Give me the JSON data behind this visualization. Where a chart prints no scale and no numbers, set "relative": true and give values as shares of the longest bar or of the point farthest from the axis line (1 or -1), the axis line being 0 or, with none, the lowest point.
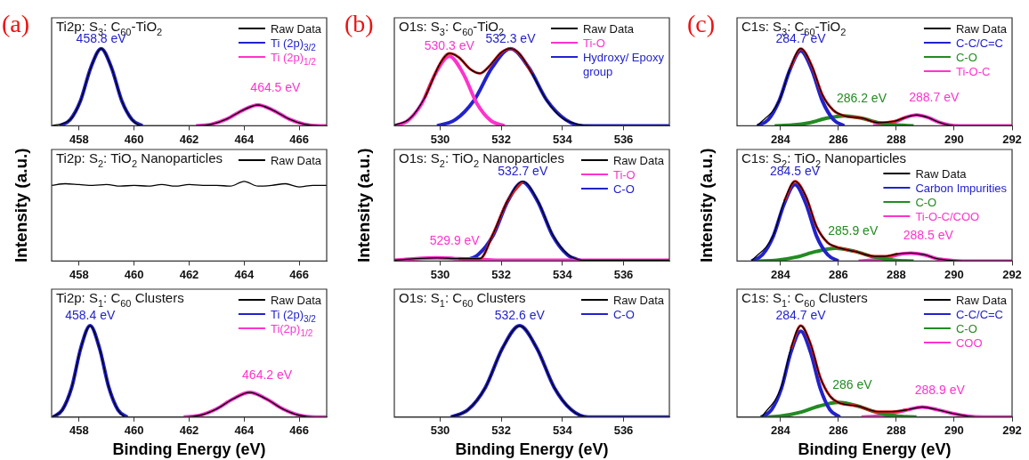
{
  "chart_data": [
    {
      "type": "line",
      "relative": true,
      "title": "Ti2p: S$_{3}$: C$_{60}$-TiO$_{2}$",
      "xlim": [
        457,
        467
      ],
      "xticks": [
        458,
        460,
        462,
        464,
        466
      ],
      "legend": "top right",
      "annotations": [
        "(a)",
        {
          "text": "458.8 eV",
          "x": 458.8,
          "y": 1
        },
        {
          "text": "464.5 eV",
          "x": 464.5,
          "y": 0.27
        }
      ],
      "series": [
        {
          "name": "Raw Data",
          "color": "#000000",
          "x": [
            457,
            457.675,
            458.05,
            458.425,
            458.8,
            459.175,
            459.55,
            459.925,
            460.3,
            462.25,
            462.81,
            463.38,
            463.94,
            464.5,
            465.06,
            465.62,
            466.19,
            466.75,
            467
          ],
          "values": [
            0,
            0.08,
            0.325,
            0.755,
            1,
            0.755,
            0.325,
            0.08,
            0,
            0,
            0.02,
            0.09,
            0.2,
            0.27,
            0.2,
            0.09,
            0.02,
            0,
            0
          ]
        },
        {
          "name": "Ti (2p)$_{3/2}$",
          "color": "#2222cc",
          "x": [
            457.3,
            457.675,
            458.05,
            458.425,
            458.8,
            459.175,
            459.55,
            459.925,
            460.3
          ],
          "values": [
            0,
            0.08,
            0.325,
            0.755,
            1,
            0.755,
            0.325,
            0.08,
            0
          ]
        },
        {
          "name": "Ti (2p)$_{1/2}$",
          "color": "#ff33cc",
          "x": [
            462.25,
            462.81,
            463.38,
            463.94,
            464.5,
            465.06,
            465.62,
            466.19,
            466.75,
            467
          ],
          "values": [
            0,
            0.02,
            0.09,
            0.2,
            0.27,
            0.2,
            0.09,
            0.02,
            0,
            0
          ]
        }
      ]
    },
    {
      "type": "line",
      "relative": true,
      "title": "Ti2p: S$_{2}$: TiO$_{2}$ Nanoparticles",
      "ylabel": "Intensity (a.u.)",
      "xlim": [
        457,
        467
      ],
      "xticks": [
        458,
        460,
        462,
        464,
        466
      ],
      "legend": "top right",
      "series": [
        {
          "name": "Raw Data",
          "color": "#000000",
          "x": [
            457,
            457.5,
            458,
            458.5,
            459,
            459.5,
            460,
            460.5,
            461,
            461.5,
            462,
            462.5,
            463,
            463.5,
            464,
            464.5,
            465,
            465.5,
            466,
            466.5,
            467
          ],
          "values": [
            0.95,
            0.97,
            0.96,
            0.95,
            0.96,
            0.94,
            0.95,
            0.94,
            0.96,
            0.94,
            0.96,
            0.95,
            0.95,
            0.94,
            1,
            0.94,
            0.95,
            0.97,
            0.93,
            0.95,
            0.95
          ]
        }
      ]
    },
    {
      "type": "line",
      "relative": true,
      "title": "Ti2p: S$_{1}$: C$_{60}$ Clusters",
      "xlabel": "Binding Energy (eV)",
      "xlim": [
        457,
        467
      ],
      "xticks": [
        458,
        460,
        462,
        464,
        466
      ],
      "legend": "top right",
      "annotations": [
        {
          "text": "458.4 eV",
          "x": 458.4,
          "y": 1
        },
        {
          "text": "464.2 eV",
          "x": 464.2,
          "y": 0.27
        }
      ],
      "series": [
        {
          "name": "Raw Data",
          "color": "#000000",
          "x": [
            457,
            457.39,
            457.73,
            458.06,
            458.4,
            458.74,
            459.08,
            459.41,
            459.75,
            461.8,
            462.4,
            463,
            463.6,
            464.2,
            464.8,
            465.4,
            466,
            466.6,
            467
          ],
          "values": [
            0,
            0.08,
            0.325,
            0.755,
            1,
            0.755,
            0.325,
            0.08,
            0,
            0,
            0.02,
            0.09,
            0.2,
            0.27,
            0.2,
            0.09,
            0.02,
            0,
            0
          ]
        },
        {
          "name": "Ti (2p)$_{3/2}$",
          "color": "#2222cc",
          "x": [
            457.05,
            457.39,
            457.73,
            458.06,
            458.4,
            458.74,
            459.08,
            459.41,
            459.75
          ],
          "values": [
            0,
            0.08,
            0.325,
            0.755,
            1,
            0.755,
            0.325,
            0.08,
            0
          ]
        },
        {
          "name": "Ti(2p)$_{1/2}$",
          "color": "#ff33cc",
          "x": [
            461.8,
            462.4,
            463,
            463.6,
            464.2,
            464.8,
            465.4,
            466,
            466.6,
            467
          ],
          "values": [
            0,
            0.02,
            0.09,
            0.2,
            0.27,
            0.2,
            0.09,
            0.02,
            0,
            0
          ]
        }
      ]
    },
    {
      "type": "line",
      "relative": true,
      "title": "O1s: S$_{3}$: C$_{60}$-TiO$_{2}$",
      "xlim": [
        528.5,
        537.5
      ],
      "xticks": [
        530,
        532,
        534,
        536
      ],
      "legend": "top right",
      "annotations": [
        "(b)",
        {
          "text": "530.3 eV",
          "x": 530.3,
          "y": 0.9
        },
        {
          "text": "532.3 eV",
          "x": 532.3,
          "y": 1
        }
      ],
      "series": [
        {
          "name": "Raw Data",
          "color": "#000000",
          "x": [
            528.5,
            529,
            529.5,
            530,
            530.3,
            530.6,
            531,
            531.3,
            531.6,
            532,
            532.3,
            532.6,
            533,
            533.5,
            534,
            534.5,
            535,
            537.5
          ],
          "values": [
            0.01,
            0.09,
            0.37,
            0.81,
            0.94,
            0.89,
            0.73,
            0.68,
            0.77,
            0.95,
            1,
            0.93,
            0.68,
            0.32,
            0.1,
            0.02,
            0,
            0
          ]
        },
        {
          "name": "Ti-O",
          "color": "#ff33cc",
          "x": [
            528.5,
            528.95,
            529.4,
            529.85,
            530.3,
            530.75,
            531.2,
            531.65,
            532.1
          ],
          "values": [
            0,
            0.07,
            0.29,
            0.68,
            0.9,
            0.68,
            0.29,
            0.07,
            0
          ]
        },
        {
          "name": "Hydroxy/ Epoxy group",
          "color": "#2222cc",
          "x": [
            529.9,
            530.5,
            531.1,
            531.7,
            532.3,
            532.9,
            533.5,
            534.1,
            534.7,
            537.5
          ],
          "values": [
            0,
            0.08,
            0.325,
            0.755,
            1,
            0.755,
            0.325,
            0.08,
            0,
            0
          ]
        },
        {
          "color": "#e02020",
          "x": [
            529.5,
            530,
            530.3,
            530.6,
            531,
            531.3,
            531.6,
            532,
            532.3,
            532.6,
            533
          ],
          "values": [
            0.37,
            0.81,
            0.94,
            0.89,
            0.73,
            0.68,
            0.77,
            0.95,
            1,
            0.93,
            0.68
          ]
        }
      ]
    },
    {
      "type": "line",
      "relative": true,
      "title": "O1s: S$_{2}$: TiO$_{2}$ Nanoparticles",
      "ylabel": "Intensity (a.u.)",
      "xlim": [
        528.5,
        537.5
      ],
      "xticks": [
        530,
        532,
        534,
        536
      ],
      "legend": "top right",
      "annotations": [
        {
          "text": "532.7 eV",
          "x": 532.7,
          "y": 1
        },
        {
          "text": "529.9 eV",
          "x": 529.9,
          "y": 0.04
        }
      ],
      "series": [
        {
          "name": "Raw Data",
          "color": "#000000",
          "x": [
            528.5,
            529.2,
            529.9,
            530.6,
            531.3,
            531.73,
            532.21,
            532.7,
            533.19,
            533.68,
            534.16,
            534.65,
            537.5
          ],
          "values": [
            0.01,
            0.03,
            0.04,
            0.03,
            0.03,
            0.34,
            0.76,
            1,
            0.76,
            0.33,
            0.09,
            0.01,
            0.01
          ]
        },
        {
          "name": "Ti-O",
          "color": "#ff33cc",
          "x": [
            528.5,
            529.2,
            529.9,
            530.6,
            531.3,
            532,
            537.5
          ],
          "values": [
            0.01,
            0.03,
            0.04,
            0.03,
            0.02,
            0.01,
            0.01
          ]
        },
        {
          "name": "C-O",
          "color": "#2222cc",
          "x": [
            530.75,
            531.24,
            531.73,
            532.21,
            532.7,
            533.19,
            533.68,
            534.16,
            534.65
          ],
          "values": [
            0,
            0.08,
            0.32,
            0.75,
            0.99,
            0.75,
            0.32,
            0.08,
            0
          ]
        },
        {
          "color": "#e02020",
          "x": [
            530.6,
            531.3,
            531.73,
            532.21,
            532.7
          ],
          "values": [
            0.03,
            0.03,
            0.34,
            0.76,
            1
          ]
        }
      ]
    },
    {
      "type": "line",
      "relative": true,
      "title": "O1s: S$_{1}$: C$_{60}$ Clusters",
      "xlabel": "Binding Energy (eV)",
      "xlim": [
        528.5,
        537.5
      ],
      "xticks": [
        530,
        532,
        534,
        536
      ],
      "legend": "top right",
      "annotations": [
        {
          "text": "532.6 eV",
          "x": 532.6,
          "y": 1
        }
      ],
      "series": [
        {
          "name": "Raw Data",
          "color": "#000000",
          "x": [
            530.35,
            530.91,
            531.48,
            532.04,
            532.6,
            533.16,
            533.73,
            534.29,
            534.85,
            537.5
          ],
          "values": [
            0,
            0.08,
            0.325,
            0.755,
            1,
            0.755,
            0.325,
            0.08,
            0,
            0
          ]
        },
        {
          "name": "C-O",
          "color": "#2222cc",
          "x": [
            530.35,
            530.91,
            531.48,
            532.04,
            532.6,
            533.16,
            533.73,
            534.29,
            534.85,
            537.5
          ],
          "values": [
            0,
            0.08,
            0.325,
            0.755,
            1,
            0.755,
            0.325,
            0.08,
            0,
            0
          ]
        }
      ]
    },
    {
      "type": "line",
      "relative": true,
      "title": "C1s: S$_{3}$: C$_{60}$-TiO$_{2}$",
      "xlim": [
        282.5,
        292
      ],
      "xticks": [
        284,
        286,
        288,
        290,
        292
      ],
      "legend": "top right",
      "annotations": [
        "(c)",
        {
          "text": "284.7 eV",
          "x": 284.7,
          "y": 1
        },
        {
          "text": "286.2 eV",
          "x": 286.2,
          "y": 0.13
        },
        {
          "text": "288.7 eV",
          "x": 288.7,
          "y": 0.14
        }
      ],
      "series": [
        {
          "name": "Raw Data",
          "color": "#000000",
          "x": [
            283.2,
            283.95,
            284.33,
            284.7,
            285.08,
            285.45,
            285.83,
            286.2,
            286.8,
            287.4,
            287.95,
            288.33,
            288.7,
            289.08,
            289.45,
            289.83,
            290.2,
            292
          ],
          "values": [
            0,
            0.32,
            0.74,
            1,
            0.78,
            0.4,
            0.2,
            0.13,
            0.1,
            0.04,
            0.06,
            0.11,
            0.14,
            0.11,
            0.05,
            0.01,
            0,
            0
          ]
        },
        {
          "name": "C-C/C=C",
          "color": "#2222cc",
          "x": [
            283.2,
            283.58,
            283.95,
            284.33,
            284.7,
            285.08,
            285.45,
            285.83,
            286.2
          ],
          "values": [
            0,
            0.08,
            0.32,
            0.73,
            0.97,
            0.73,
            0.32,
            0.08,
            0
          ]
        },
        {
          "name": "C-O",
          "color": "#228b22",
          "x": [
            283.8,
            284.4,
            285,
            285.6,
            286.2,
            286.8,
            287.4,
            288,
            288.6
          ],
          "values": [
            0,
            0.01,
            0.04,
            0.1,
            0.13,
            0.1,
            0.04,
            0.01,
            0
          ]
        },
        {
          "name": "Ti-O-C",
          "color": "#ff33cc",
          "x": [
            287.2,
            287.58,
            287.95,
            288.33,
            288.7,
            289.08,
            289.45,
            289.83,
            290.2,
            292
          ],
          "values": [
            0,
            0.01,
            0.05,
            0.11,
            0.14,
            0.11,
            0.05,
            0.01,
            0,
            0
          ]
        },
        {
          "color": "#e02020",
          "x": [
            284.33,
            284.7,
            285.08,
            285.45,
            285.83,
            286.2,
            286.8,
            287.4,
            287.95,
            288.33
          ],
          "values": [
            0.74,
            1,
            0.78,
            0.4,
            0.2,
            0.13,
            0.1,
            0.04,
            0.06,
            0.11
          ]
        }
      ]
    },
    {
      "type": "line",
      "relative": true,
      "title": "C1s: S$_{2}$: TiO$_{2}$ Nanoparticles",
      "ylabel": "Intensity (a.u.)",
      "xlim": [
        282.5,
        292
      ],
      "xticks": [
        284,
        286,
        288,
        290,
        292
      ],
      "legend": "top right",
      "annotations": [
        {
          "text": "284.5 eV",
          "x": 284.5,
          "y": 1
        },
        {
          "text": "285.9 eV",
          "x": 285.9,
          "y": 0.16
        },
        {
          "text": "288.5 eV",
          "x": 288.5,
          "y": 0.1
        }
      ],
      "series": [
        {
          "name": "Raw Data",
          "color": "#000000",
          "x": [
            283,
            283.75,
            284.13,
            284.5,
            284.88,
            285.25,
            285.63,
            285.9,
            286.58,
            287.25,
            287.6,
            288.05,
            288.5,
            288.95,
            289.4,
            289.85,
            290.3,
            292
          ],
          "values": [
            0,
            0.32,
            0.75,
            1,
            0.81,
            0.43,
            0.23,
            0.18,
            0.12,
            0.06,
            0.06,
            0.09,
            0.1,
            0.08,
            0.03,
            0.01,
            0,
            0
          ]
        },
        {
          "name": "Carbon Impurities",
          "color": "#2222cc",
          "x": [
            283,
            283.38,
            283.75,
            284.13,
            284.5,
            284.88,
            285.25,
            285.63,
            286
          ],
          "values": [
            0,
            0.08,
            0.31,
            0.72,
            0.96,
            0.72,
            0.31,
            0.08,
            0
          ]
        },
        {
          "name": "C-O",
          "color": "#228b22",
          "x": [
            283.2,
            283.88,
            284.55,
            285.23,
            285.9,
            286.58,
            287.25,
            287.93,
            288.6
          ],
          "values": [
            0,
            0.01,
            0.05,
            0.12,
            0.16,
            0.12,
            0.05,
            0.01,
            0
          ]
        },
        {
          "name": "Ti-O-C/COO",
          "color": "#ff33cc",
          "x": [
            286.7,
            287.15,
            287.6,
            288.05,
            288.5,
            288.95,
            289.4,
            289.85,
            290.3,
            292
          ],
          "values": [
            0,
            0.01,
            0.03,
            0.08,
            0.1,
            0.08,
            0.03,
            0.01,
            0,
            0
          ]
        },
        {
          "color": "#e02020",
          "x": [
            284.13,
            284.5,
            284.88,
            285.25,
            285.63,
            285.9,
            286.58,
            287.25,
            287.6,
            288.05
          ],
          "values": [
            0.75,
            1,
            0.81,
            0.43,
            0.23,
            0.18,
            0.12,
            0.06,
            0.06,
            0.09
          ]
        }
      ]
    },
    {
      "type": "line",
      "relative": true,
      "title": "C1s: S$_{1}$: C$_{60}$ Clusters",
      "xlabel": "Binding Energy (eV)",
      "xlim": [
        282.5,
        292
      ],
      "xticks": [
        284,
        286,
        288,
        290,
        292
      ],
      "legend": "top right",
      "annotations": [
        {
          "text": "284.7 eV",
          "x": 284.7,
          "y": 1
        },
        {
          "text": "286 eV",
          "x": 286,
          "y": 0.16
        },
        {
          "text": "288.9 eV",
          "x": 288.9,
          "y": 0.11
        }
      ],
      "series": [
        {
          "name": "Raw Data",
          "color": "#000000",
          "x": [
            283.35,
            284.03,
            284.36,
            284.7,
            285.04,
            285.38,
            285.71,
            286,
            286.68,
            287.35,
            287.85,
            288.38,
            288.9,
            289.43,
            289.95,
            290.48,
            291,
            292
          ],
          "values": [
            0,
            0.33,
            0.75,
            1,
            0.8,
            0.43,
            0.23,
            0.16,
            0.12,
            0.06,
            0.06,
            0.08,
            0.11,
            0.08,
            0.04,
            0.01,
            0,
            0
          ]
        },
        {
          "name": "C-C/C=C",
          "color": "#2222cc",
          "x": [
            283.35,
            283.69,
            284.03,
            284.36,
            284.7,
            285.04,
            285.38,
            285.71,
            286.05
          ],
          "values": [
            0,
            0.08,
            0.31,
            0.71,
            0.94,
            0.71,
            0.31,
            0.08,
            0
          ]
        },
        {
          "name": "C-O",
          "color": "#228b22",
          "x": [
            283.3,
            283.98,
            284.65,
            285.33,
            286,
            286.68,
            287.35,
            288.03,
            288.7
          ],
          "values": [
            0,
            0.01,
            0.05,
            0.12,
            0.16,
            0.12,
            0.05,
            0.01,
            0
          ]
        },
        {
          "name": "COO",
          "color": "#ff33cc",
          "x": [
            286.8,
            287.33,
            287.85,
            288.38,
            288.9,
            289.43,
            289.95,
            290.48,
            291,
            292
          ],
          "values": [
            0,
            0.01,
            0.04,
            0.08,
            0.11,
            0.08,
            0.04,
            0.01,
            0,
            0
          ]
        },
        {
          "color": "#e02020",
          "x": [
            284.36,
            284.7,
            285.04,
            285.38,
            285.71,
            286,
            286.68,
            287.35,
            287.85,
            288.38
          ],
          "values": [
            0.75,
            1,
            0.8,
            0.43,
            0.23,
            0.16,
            0.12,
            0.06,
            0.06,
            0.08
          ]
        }
      ]
    }
  ]
}
